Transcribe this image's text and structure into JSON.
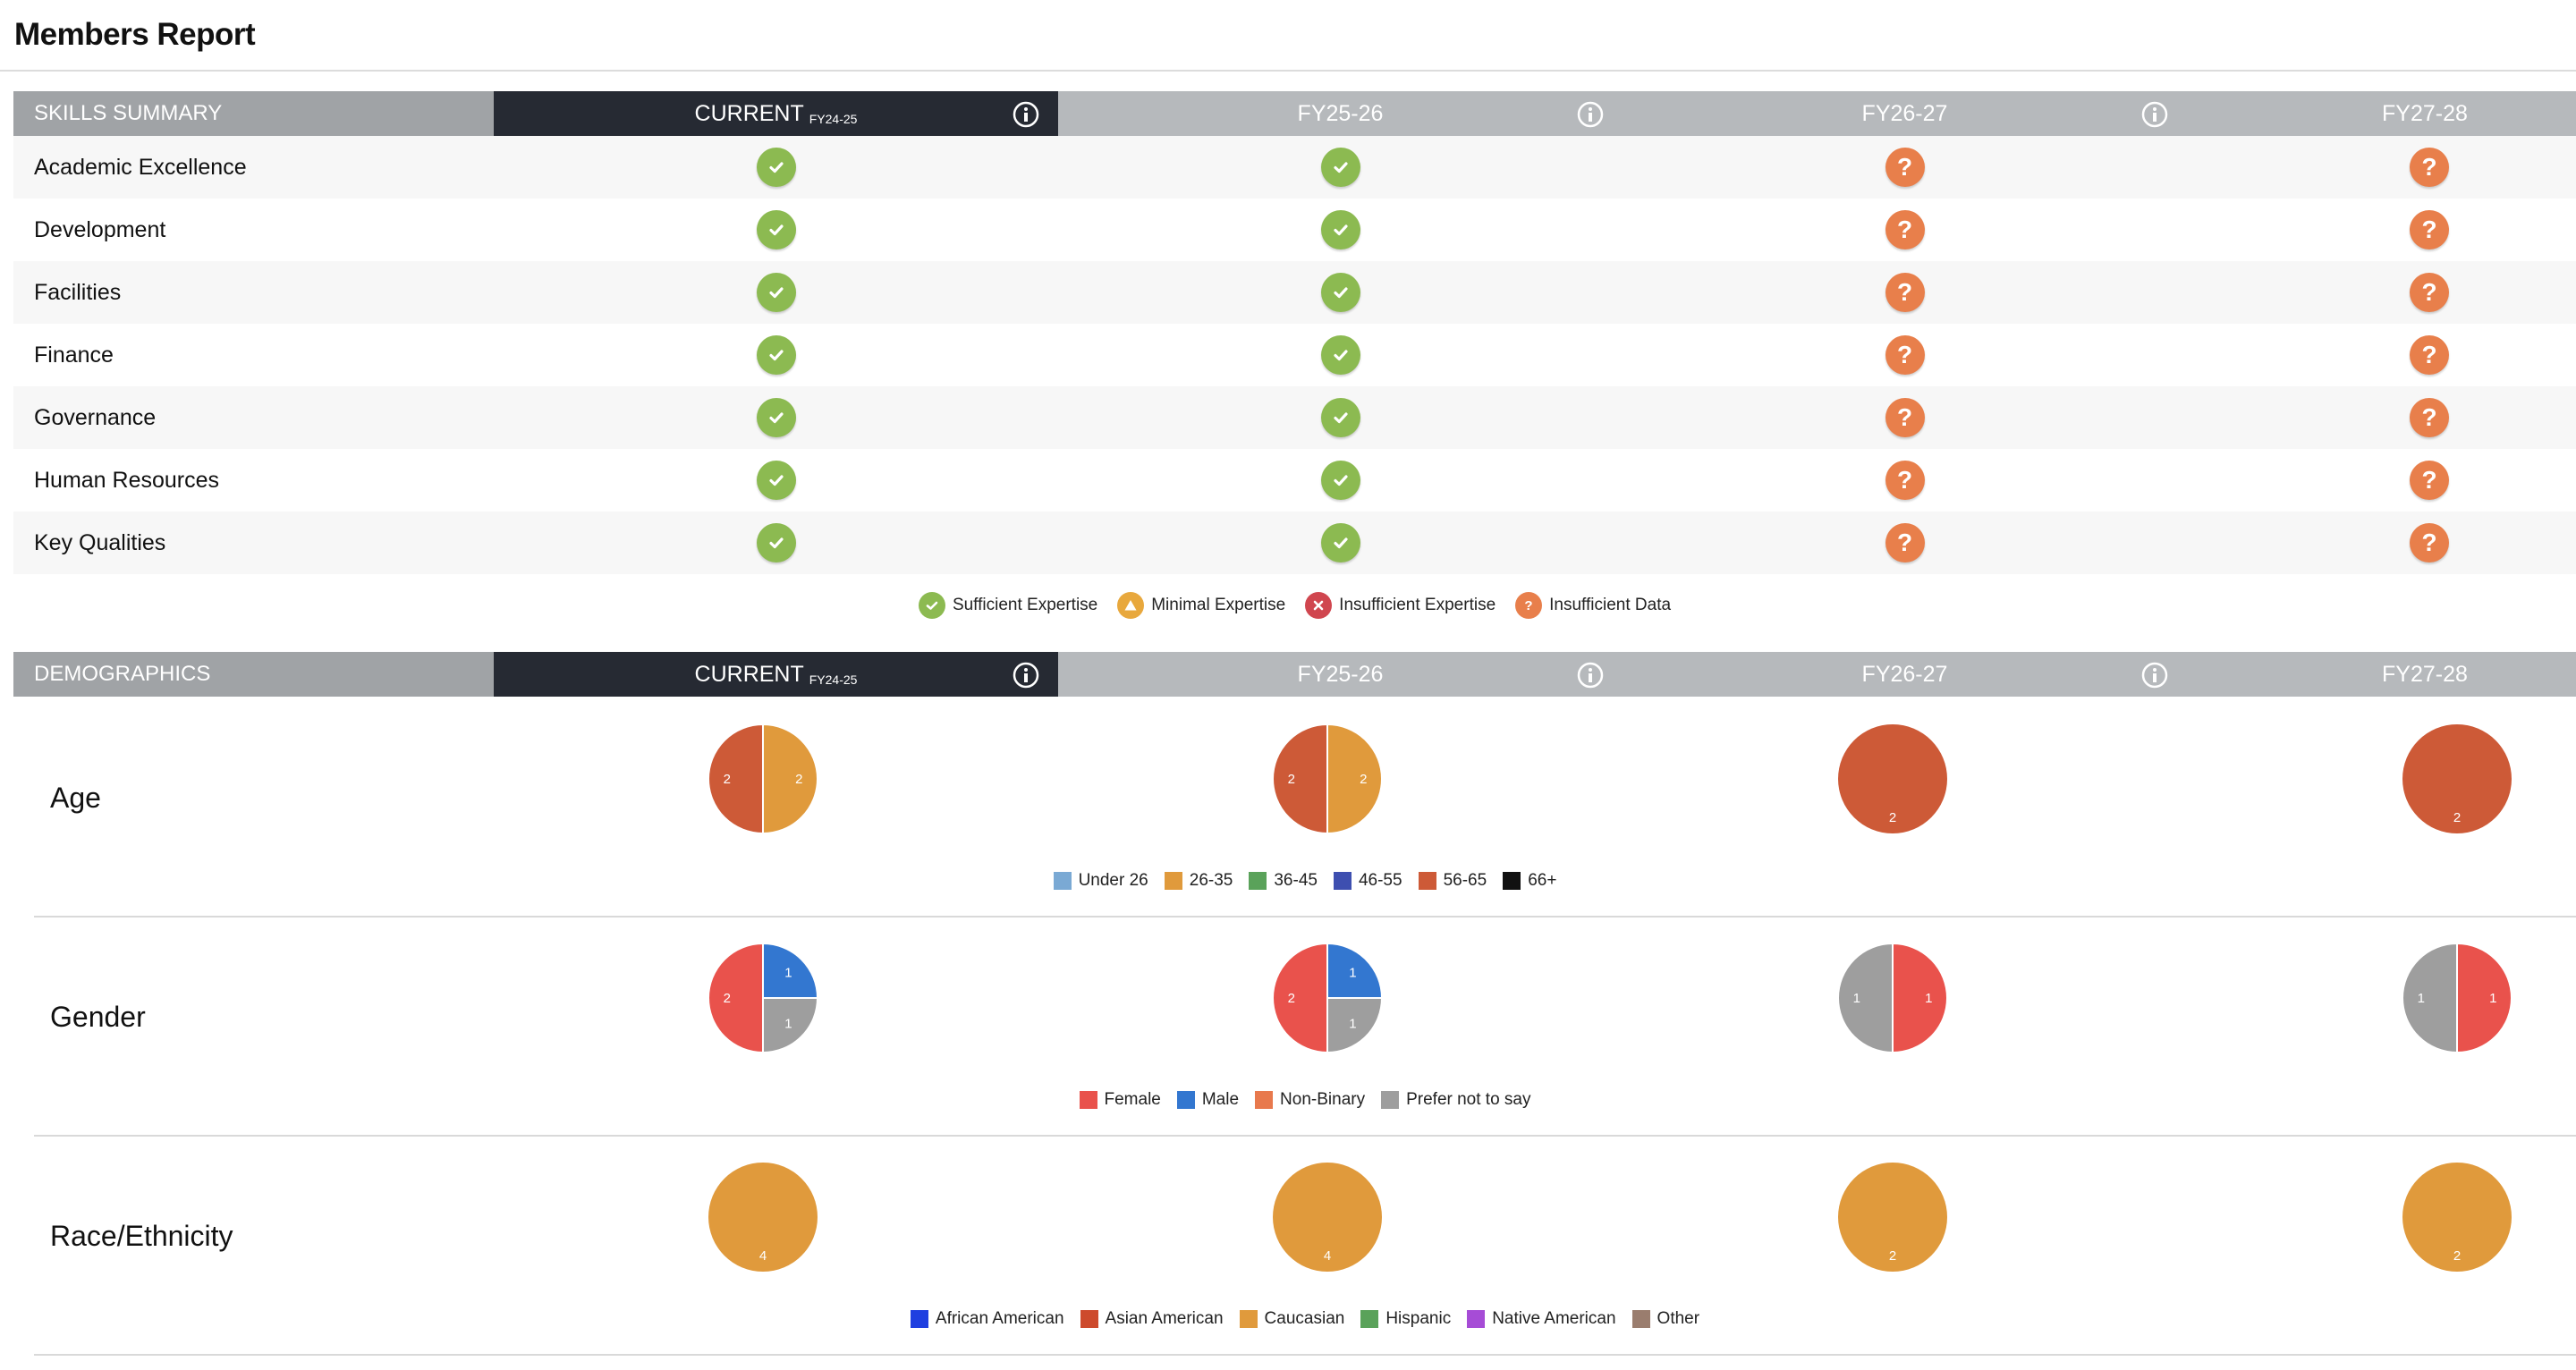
{
  "page": {
    "title": "Members Report"
  },
  "columns": [
    {
      "key": "current",
      "label": "CURRENT",
      "sub": "FY24-25",
      "info": true
    },
    {
      "key": "fy2526",
      "label": "FY25-26",
      "sub": "",
      "info": true
    },
    {
      "key": "fy2627",
      "label": "FY26-27",
      "sub": "",
      "info": true
    },
    {
      "key": "fy2728",
      "label": "FY27-28",
      "sub": "",
      "info": false
    }
  ],
  "skills": {
    "header": "SKILLS SUMMARY",
    "rows": [
      {
        "name": "Academic Excellence",
        "status": [
          "ok",
          "ok",
          "nodata",
          "nodata"
        ]
      },
      {
        "name": "Development",
        "status": [
          "ok",
          "ok",
          "nodata",
          "nodata"
        ]
      },
      {
        "name": "Facilities",
        "status": [
          "ok",
          "ok",
          "nodata",
          "nodata"
        ]
      },
      {
        "name": "Finance",
        "status": [
          "ok",
          "ok",
          "nodata",
          "nodata"
        ]
      },
      {
        "name": "Governance",
        "status": [
          "ok",
          "ok",
          "nodata",
          "nodata"
        ]
      },
      {
        "name": "Human Resources",
        "status": [
          "ok",
          "ok",
          "nodata",
          "nodata"
        ]
      },
      {
        "name": "Key Qualities",
        "status": [
          "ok",
          "ok",
          "nodata",
          "nodata"
        ]
      }
    ],
    "legend": [
      {
        "label": "Sufficient Expertise",
        "icon": "check-icon",
        "color": "#8cba51"
      },
      {
        "label": "Minimal Expertise",
        "icon": "warning-icon",
        "color": "#e8a83d"
      },
      {
        "label": "Insufficient Expertise",
        "icon": "x-icon",
        "color": "#d0464f"
      },
      {
        "label": "Insufficient Data",
        "icon": "question-icon",
        "color": "#e87f4b"
      }
    ]
  },
  "demographics": {
    "header": "DEMOGRAPHICS",
    "groups": [
      {
        "label": "Age",
        "legend": [
          {
            "label": "Under 26",
            "color": "#7aa9d4"
          },
          {
            "label": "26-35",
            "color": "#e09a3c"
          },
          {
            "label": "36-45",
            "color": "#5aa25a"
          },
          {
            "label": "46-55",
            "color": "#3e4fb0"
          },
          {
            "label": "56-65",
            "color": "#cd5a37"
          },
          {
            "label": "66+",
            "color": "#111111"
          }
        ],
        "pies": [
          [
            {
              "cat": "26-35",
              "value": 2
            },
            {
              "cat": "56-65",
              "value": 2
            }
          ],
          [
            {
              "cat": "26-35",
              "value": 2
            },
            {
              "cat": "56-65",
              "value": 2
            }
          ],
          [
            {
              "cat": "56-65",
              "value": 2
            }
          ],
          [
            {
              "cat": "56-65",
              "value": 2
            }
          ]
        ]
      },
      {
        "label": "Gender",
        "legend": [
          {
            "label": "Female",
            "color": "#e9524c"
          },
          {
            "label": "Male",
            "color": "#3377d0"
          },
          {
            "label": "Non-Binary",
            "color": "#e8794d"
          },
          {
            "label": "Prefer not to say",
            "color": "#9e9e9e"
          }
        ],
        "pies": [
          [
            {
              "cat": "Male",
              "value": 1
            },
            {
              "cat": "Prefer not to say",
              "value": 1
            },
            {
              "cat": "Female",
              "value": 2
            }
          ],
          [
            {
              "cat": "Male",
              "value": 1
            },
            {
              "cat": "Prefer not to say",
              "value": 1
            },
            {
              "cat": "Female",
              "value": 2
            }
          ],
          [
            {
              "cat": "Female",
              "value": 1
            },
            {
              "cat": "Prefer not to say",
              "value": 1
            }
          ],
          [
            {
              "cat": "Female",
              "value": 1
            },
            {
              "cat": "Prefer not to say",
              "value": 1
            }
          ]
        ]
      },
      {
        "label": "Race/Ethnicity",
        "legend": [
          {
            "label": "African American",
            "color": "#1f3fe0"
          },
          {
            "label": "Asian American",
            "color": "#cd4a2c"
          },
          {
            "label": "Caucasian",
            "color": "#e09a3c"
          },
          {
            "label": "Hispanic",
            "color": "#5aa25a"
          },
          {
            "label": "Native American",
            "color": "#a64cd6"
          },
          {
            "label": "Other",
            "color": "#9a7d6e"
          }
        ],
        "pies": [
          [
            {
              "cat": "Caucasian",
              "value": 4
            }
          ],
          [
            {
              "cat": "Caucasian",
              "value": 4
            }
          ],
          [
            {
              "cat": "Caucasian",
              "value": 2
            }
          ],
          [
            {
              "cat": "Caucasian",
              "value": 2
            }
          ]
        ]
      }
    ]
  }
}
